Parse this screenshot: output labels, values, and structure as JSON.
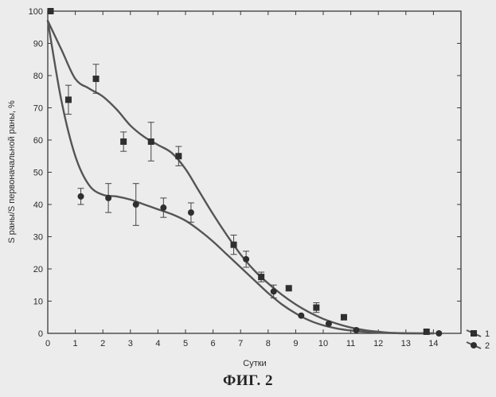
{
  "figure_caption": "ФИГ. 2",
  "chart_data": {
    "type": "scatter",
    "title": "",
    "xlabel": "Сутки",
    "ylabel": "S раны/S первоначальной раны, %",
    "xlim": [
      0,
      15
    ],
    "ylim": [
      0,
      100
    ],
    "x_ticks": [
      0,
      1,
      2,
      3,
      4,
      5,
      6,
      7,
      8,
      9,
      10,
      11,
      12,
      13,
      14
    ],
    "y_ticks": [
      0,
      10,
      20,
      30,
      40,
      50,
      60,
      70,
      80,
      90,
      100
    ],
    "grid": false,
    "legend_position": "bottom-right, outside plot",
    "series": [
      {
        "name": "1",
        "marker": "square",
        "color": "#2f2f2f",
        "points": [
          {
            "x": 0.1,
            "y": 100,
            "err": 0
          },
          {
            "x": 0.75,
            "y": 72.5,
            "err": 4.5
          },
          {
            "x": 1.75,
            "y": 79,
            "err": 4.5
          },
          {
            "x": 2.75,
            "y": 59.5,
            "err": 3
          },
          {
            "x": 3.75,
            "y": 59.5,
            "err": 6
          },
          {
            "x": 4.75,
            "y": 55,
            "err": 3
          },
          {
            "x": 6.75,
            "y": 27.5,
            "err": 3
          },
          {
            "x": 7.75,
            "y": 17.5,
            "err": 1.5
          },
          {
            "x": 8.75,
            "y": 14,
            "err": 0
          },
          {
            "x": 9.75,
            "y": 8,
            "err": 1.5
          },
          {
            "x": 10.75,
            "y": 5,
            "err": 0
          },
          {
            "x": 13.75,
            "y": 0.5,
            "err": 0
          }
        ],
        "fit": [
          [
            0,
            97
          ],
          [
            0.5,
            88
          ],
          [
            1,
            79
          ],
          [
            1.5,
            76
          ],
          [
            2,
            73.5
          ],
          [
            2.5,
            69.5
          ],
          [
            3,
            64.5
          ],
          [
            3.5,
            61
          ],
          [
            4,
            58.5
          ],
          [
            4.5,
            56
          ],
          [
            5,
            51
          ],
          [
            5.5,
            44
          ],
          [
            6,
            37
          ],
          [
            6.5,
            30.5
          ],
          [
            7,
            24.5
          ],
          [
            7.5,
            19.5
          ],
          [
            8,
            15.5
          ],
          [
            8.5,
            12
          ],
          [
            9,
            9
          ],
          [
            9.5,
            6.5
          ],
          [
            10,
            4.5
          ],
          [
            10.5,
            3
          ],
          [
            11,
            1.8
          ],
          [
            11.5,
            1
          ],
          [
            12,
            0.5
          ],
          [
            12.5,
            0.15
          ],
          [
            13,
            0
          ],
          [
            14,
            0
          ]
        ]
      },
      {
        "name": "2",
        "marker": "circle",
        "color": "#2f2f2f",
        "points": [
          {
            "x": 0.1,
            "y": 100,
            "err": 0
          },
          {
            "x": 1.2,
            "y": 42.5,
            "err": 2.5
          },
          {
            "x": 2.2,
            "y": 42,
            "err": 4.5
          },
          {
            "x": 3.2,
            "y": 40,
            "err": 6.5
          },
          {
            "x": 4.2,
            "y": 39,
            "err": 3
          },
          {
            "x": 5.2,
            "y": 37.5,
            "err": 3
          },
          {
            "x": 7.2,
            "y": 23,
            "err": 2.5
          },
          {
            "x": 8.2,
            "y": 13,
            "err": 2
          },
          {
            "x": 9.2,
            "y": 5.5,
            "err": 0
          },
          {
            "x": 10.2,
            "y": 3,
            "err": 0
          },
          {
            "x": 11.2,
            "y": 1,
            "err": 0
          },
          {
            "x": 14.2,
            "y": 0,
            "err": 0
          }
        ],
        "fit": [
          [
            0,
            97
          ],
          [
            0.5,
            72
          ],
          [
            1,
            55
          ],
          [
            1.5,
            46
          ],
          [
            2,
            43
          ],
          [
            2.5,
            42.5
          ],
          [
            3,
            41.5
          ],
          [
            3.5,
            40
          ],
          [
            4,
            38.5
          ],
          [
            4.5,
            37
          ],
          [
            5,
            35
          ],
          [
            5.5,
            32
          ],
          [
            6,
            28.5
          ],
          [
            6.5,
            24.5
          ],
          [
            7,
            20.5
          ],
          [
            7.5,
            16.5
          ],
          [
            8,
            12.5
          ],
          [
            8.5,
            9
          ],
          [
            9,
            6.2
          ],
          [
            9.5,
            4
          ],
          [
            10,
            2.5
          ],
          [
            10.5,
            1.5
          ],
          [
            11,
            0.9
          ],
          [
            11.5,
            0.5
          ],
          [
            12,
            0.2
          ],
          [
            13,
            0.05
          ],
          [
            14,
            0
          ]
        ]
      }
    ]
  }
}
